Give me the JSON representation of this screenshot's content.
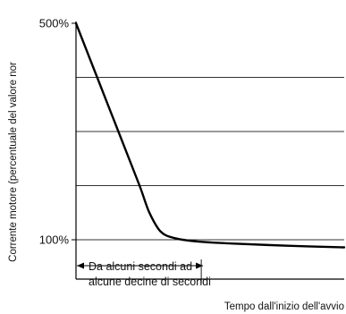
{
  "chart_data": {
    "type": "line",
    "title": "",
    "xlabel": "Tempo dall'inizio dell'avvio",
    "ylabel": "Corrente motore (percentuale del valore nor",
    "y_ticks": [
      {
        "value": 100,
        "label": "100%"
      },
      {
        "value": 500,
        "label": "500%"
      }
    ],
    "ylim": [
      0,
      500
    ],
    "gridlines_y": [
      100,
      200,
      300,
      400
    ],
    "series": [
      {
        "values": [
          {
            "x": 0,
            "y": 500
          },
          {
            "x": 0.15,
            "y": 400
          },
          {
            "x": 0.3,
            "y": 300
          },
          {
            "x": 0.45,
            "y": 200
          },
          {
            "x": 0.52,
            "y": 150
          },
          {
            "x": 0.6,
            "y": 115
          },
          {
            "x": 0.7,
            "y": 103
          },
          {
            "x": 0.85,
            "y": 97
          },
          {
            "x": 1.1,
            "y": 93
          },
          {
            "x": 1.5,
            "y": 89
          },
          {
            "x": 1.9,
            "y": 86
          }
        ]
      }
    ],
    "annotation": {
      "line1": "Da alcuni secondi ad",
      "line2": "alcune decine di secondi",
      "x_start": 0,
      "x_end": 0.9,
      "y_level": 90
    },
    "colors": {
      "curve": "#000000",
      "grid": "#333333",
      "axis": "#000000"
    }
  }
}
